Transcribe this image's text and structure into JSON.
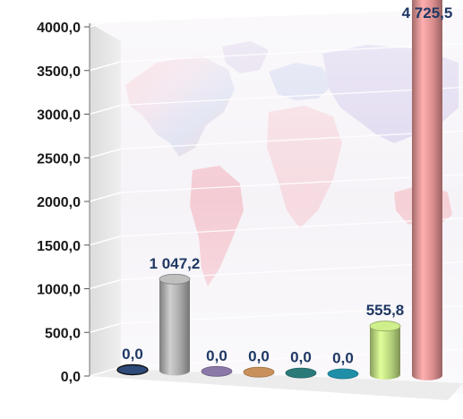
{
  "chart_data": {
    "type": "bar",
    "style": "3d-cylinder",
    "categories": [
      "",
      "",
      "",
      "",
      "",
      "",
      "",
      ""
    ],
    "values": [
      0.0,
      1047.2,
      0.0,
      0.0,
      0.0,
      0.0,
      555.8,
      4725.5
    ],
    "value_labels": [
      "0,0",
      "1 047,2",
      "0,0",
      "0,0",
      "0,0",
      "0,0",
      "555,8",
      "4 725,5"
    ],
    "series_colors": [
      "#2e4a7a",
      "#a6a6a6",
      "#8a78a8",
      "#c8905a",
      "#2a7a7a",
      "#1f8fa8",
      "#b4d07a",
      "#d98c8c"
    ],
    "yticks": [
      "0,0",
      "500,0",
      "1000,0",
      "1500,0",
      "2000,0",
      "2500,0",
      "3000,0",
      "3500,0",
      "4000,0"
    ],
    "ylim": [
      0,
      4000
    ],
    "title": "",
    "xlabel": "",
    "ylabel": "",
    "grid": true,
    "legend": "none",
    "background": "world-map"
  }
}
